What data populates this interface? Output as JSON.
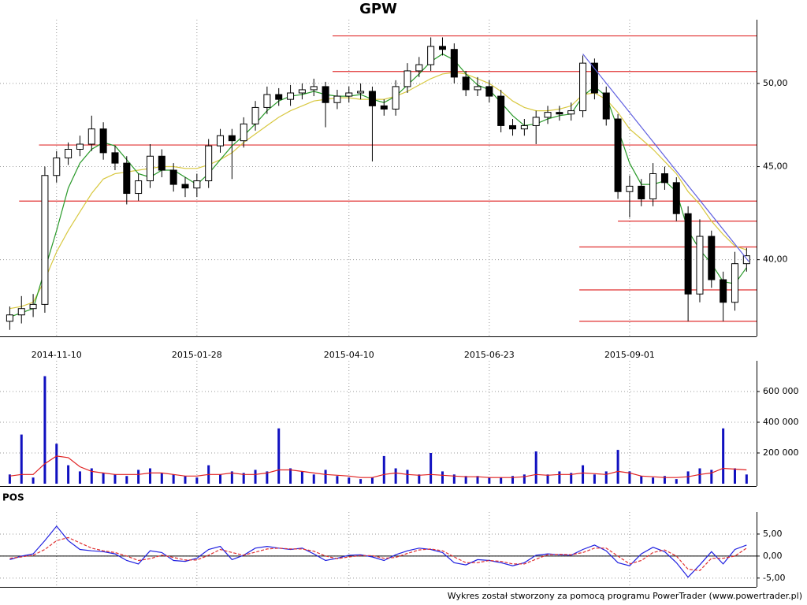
{
  "chart_data": [
    {
      "type": "candlestick",
      "title": "GPW",
      "log": true,
      "grid": true,
      "categories": [
        null,
        null,
        null,
        null,
        "2014-11-10",
        null,
        null,
        null,
        null,
        null,
        null,
        null,
        null,
        null,
        null,
        null,
        "2015-01-28",
        null,
        null,
        null,
        null,
        null,
        null,
        null,
        null,
        null,
        null,
        null,
        null,
        "2015-04-10",
        null,
        null,
        null,
        null,
        null,
        null,
        null,
        null,
        null,
        null,
        null,
        "2015-06-23",
        null,
        null,
        null,
        null,
        null,
        null,
        null,
        null,
        null,
        null,
        null,
        "2015-09-01",
        null,
        null,
        null,
        null,
        null,
        null,
        null,
        null,
        null,
        null
      ],
      "open": [
        37.0,
        37.3,
        37.6,
        37.8,
        44.5,
        45.5,
        46,
        46.3,
        47.2,
        45.8,
        45.2,
        43.5,
        44.2,
        45.6,
        44.8,
        44,
        43.8,
        44.2,
        46.2,
        46.8,
        46.5,
        47.5,
        48.5,
        49.3,
        49,
        49.4,
        49.6,
        49.8,
        48.8,
        49.2,
        49.4,
        49.5,
        48.6,
        48.4,
        49.8,
        50.8,
        51.2,
        52.4,
        52.2,
        50.4,
        49.6,
        49.8,
        49.2,
        47.4,
        47.2,
        47.4,
        47.9,
        48.2,
        48.1,
        48.3,
        51.3,
        49.4,
        47.8,
        43.6,
        43.9,
        43.2,
        44.6,
        44.1,
        42.4,
        38.3,
        41.2,
        39,
        37.9,
        39.8
      ],
      "high": [
        37.7,
        38.2,
        38.3,
        45.0,
        45.9,
        46.4,
        46.8,
        48.0,
        47.6,
        46.2,
        45.6,
        44.6,
        46.3,
        46.0,
        45.2,
        44.4,
        44.6,
        46.6,
        47.2,
        47.2,
        47.9,
        48.9,
        49.8,
        49.7,
        49.9,
        50.0,
        50.3,
        50.1,
        49.6,
        49.8,
        50.0,
        49.8,
        49.0,
        50.2,
        51.3,
        51.7,
        53.0,
        53.0,
        52.6,
        50.8,
        50.4,
        50.2,
        49.6,
        47.8,
        47.8,
        48.3,
        48.6,
        48.6,
        48.8,
        51.8,
        51.6,
        49.8,
        48.1,
        44.5,
        44.3,
        45.2,
        45.0,
        44.4,
        42.8,
        42.1,
        41.5,
        39.4,
        40.4,
        40.6
      ],
      "low": [
        36.6,
        36.9,
        37.2,
        37.4,
        44.1,
        45.1,
        45.6,
        45.9,
        45.4,
        44.8,
        42.9,
        43.1,
        43.8,
        44.4,
        43.6,
        43.3,
        43.3,
        43.8,
        45.8,
        44.3,
        46.1,
        47.1,
        48.1,
        48.6,
        48.6,
        49.0,
        49.2,
        47.3,
        48.4,
        48.8,
        49.0,
        45.3,
        48.0,
        48.0,
        49.4,
        50.4,
        50.8,
        51.8,
        50.0,
        49.2,
        49.2,
        48.8,
        47.0,
        46.8,
        46.8,
        46.3,
        47.5,
        47.7,
        47.7,
        47.9,
        49.0,
        47.4,
        43.2,
        42.2,
        42.8,
        42.8,
        43.7,
        42.0,
        37.0,
        37.9,
        38.6,
        37.0,
        37.5,
        39.4
      ],
      "close": [
        37.3,
        37.6,
        37.8,
        44.5,
        45.5,
        46,
        46.3,
        47.2,
        45.8,
        45.2,
        43.5,
        44.2,
        45.6,
        44.8,
        44,
        43.8,
        44.2,
        46.2,
        46.8,
        46.5,
        47.5,
        48.5,
        49.3,
        49,
        49.4,
        49.6,
        49.8,
        48.8,
        49.2,
        49.4,
        49.5,
        48.6,
        48.4,
        49.8,
        50.8,
        51.2,
        52.4,
        52.2,
        50.4,
        49.6,
        49.8,
        49.2,
        47.4,
        47.2,
        47.4,
        47.9,
        48.2,
        48.1,
        48.3,
        51.3,
        49.4,
        47.8,
        43.6,
        43.9,
        43.2,
        44.6,
        44.1,
        42.4,
        38.3,
        41.2,
        39,
        37.9,
        39.8,
        40.2
      ],
      "lines": [
        {
          "color": "#d8c840",
          "values": [
            37.6,
            37.7,
            37.9,
            39.0,
            40.4,
            41.5,
            42.5,
            43.5,
            44.3,
            44.6,
            44.7,
            44.8,
            44.9,
            45.0,
            45.0,
            44.9,
            44.9,
            45.1,
            45.4,
            45.8,
            46.4,
            46.9,
            47.4,
            47.9,
            48.3,
            48.6,
            48.9,
            49.0,
            49.1,
            49.1,
            49.0,
            49.0,
            49.0,
            49.2,
            49.5,
            49.9,
            50.3,
            50.6,
            50.7,
            50.6,
            50.3,
            50.0,
            49.5,
            48.9,
            48.5,
            48.3,
            48.3,
            48.4,
            48.6,
            49.3,
            49.4,
            49.0,
            48.2,
            47.2,
            46.6,
            46.0,
            45.3,
            44.6,
            43.6,
            42.9,
            42.0,
            41.3,
            40.7,
            40.5
          ]
        },
        {
          "color": "#2a9a2a",
          "values": [
            37.2,
            37.4,
            37.6,
            39.5,
            41.5,
            43.8,
            45.2,
            46.0,
            46.4,
            46.2,
            45.4,
            44.6,
            44.4,
            44.8,
            44.8,
            44.4,
            44.0,
            44.6,
            45.4,
            46.2,
            46.8,
            47.5,
            48.3,
            48.9,
            49.2,
            49.3,
            49.5,
            49.3,
            49.2,
            49.2,
            49.3,
            49.0,
            48.8,
            49.2,
            49.9,
            50.6,
            51.4,
            51.9,
            51.5,
            50.6,
            49.9,
            49.6,
            48.8,
            48.0,
            47.4,
            47.5,
            47.8,
            48.0,
            48.1,
            49.2,
            49.8,
            49.2,
            47.2,
            45.2,
            44.0,
            44.0,
            44.2,
            43.6,
            41.5,
            40.5,
            39.8,
            38.9,
            38.8,
            39.6
          ]
        }
      ],
      "hline_color": "#e03030",
      "hlines": [
        {
          "value": 53.1,
          "start": 27.6
        },
        {
          "value": 50.76,
          "start": 27.6
        },
        {
          "value": 46.25,
          "start": 2.5
        },
        {
          "value": 43.08,
          "start": 0.8
        },
        {
          "value": 42.0,
          "start": 52
        },
        {
          "value": 40.65,
          "start": 48.7
        },
        {
          "value": 38.5,
          "start": 48.7
        },
        {
          "value": 37.0,
          "start": 48.7
        }
      ],
      "trendline": {
        "color": "#6060e0",
        "x": [
          49,
          63.2
        ],
        "values": [
          51.9,
          39.9
        ]
      },
      "ylim": [
        36.3,
        54.2
      ],
      "yticks": [
        {
          "value": 40,
          "label": "40,00"
        },
        {
          "value": 45,
          "label": "45,00"
        },
        {
          "value": 50,
          "label": "50,00"
        }
      ]
    },
    {
      "type": "bar",
      "grid": true,
      "color": "#1010c0",
      "values": [
        60000,
        320000,
        40000,
        700000,
        260000,
        120000,
        80000,
        100000,
        70000,
        60000,
        50000,
        90000,
        100000,
        70000,
        60000,
        50000,
        40000,
        120000,
        60000,
        80000,
        70000,
        90000,
        80000,
        360000,
        100000,
        80000,
        60000,
        90000,
        50000,
        40000,
        30000,
        40000,
        180000,
        100000,
        90000,
        60000,
        200000,
        80000,
        60000,
        50000,
        50000,
        40000,
        40000,
        50000,
        60000,
        210000,
        60000,
        80000,
        70000,
        120000,
        60000,
        80000,
        220000,
        80000,
        50000,
        40000,
        50000,
        30000,
        80000,
        100000,
        90000,
        360000,
        100000,
        60000
      ],
      "lines": [
        {
          "color": "#e02020",
          "values": [
            50000,
            60000,
            60000,
            130000,
            180000,
            170000,
            110000,
            80000,
            70000,
            60000,
            60000,
            60000,
            70000,
            70000,
            60000,
            50000,
            50000,
            60000,
            60000,
            70000,
            60000,
            60000,
            70000,
            90000,
            90000,
            80000,
            70000,
            60000,
            55000,
            50000,
            40000,
            40000,
            60000,
            70000,
            60000,
            55000,
            60000,
            55000,
            50000,
            45000,
            45000,
            40000,
            40000,
            40000,
            45000,
            60000,
            55000,
            60000,
            60000,
            70000,
            65000,
            60000,
            80000,
            70000,
            50000,
            45000,
            40000,
            40000,
            45000,
            60000,
            70000,
            100000,
            95000,
            90000
          ]
        }
      ],
      "ylim": [
        0,
        800000
      ],
      "yticks": [
        {
          "value": 200000,
          "label": "200 000"
        },
        {
          "value": 400000,
          "label": "400 000"
        },
        {
          "value": 600000,
          "label": "600 000"
        }
      ]
    },
    {
      "type": "line",
      "title": "POS",
      "grid": true,
      "zero_line": true,
      "lines": [
        {
          "color": "#2020e0",
          "values": [
            -0.8,
            0,
            0.5,
            3.5,
            6.8,
            3.5,
            1.5,
            1.2,
            1,
            0.5,
            -1,
            -1.8,
            1.2,
            0.8,
            -1,
            -1.2,
            -0.5,
            1.5,
            2.2,
            -0.8,
            0.2,
            1.8,
            2.2,
            1.8,
            1.5,
            1.8,
            0.5,
            -1,
            -0.5,
            0.2,
            0.3,
            -0.2,
            -1,
            0.3,
            1.2,
            1.8,
            1.5,
            0.8,
            -1.5,
            -2,
            -0.8,
            -1,
            -1.5,
            -2.2,
            -1.5,
            0.2,
            0.5,
            0.3,
            0.2,
            1.5,
            2.5,
            1.2,
            -1.5,
            -2.2,
            0.5,
            2,
            1,
            -1.5,
            -4.8,
            -2,
            1,
            -1.8,
            1.5,
            2.5
          ]
        },
        {
          "color": "#e03030",
          "dashed": true,
          "values": [
            -0.5,
            -0.2,
            0.2,
            1.5,
            3.5,
            4.2,
            3,
            1.8,
            1.2,
            0.8,
            0,
            -1,
            -0.6,
            0.2,
            -0.3,
            -0.9,
            -0.9,
            0.2,
            1.5,
            0.8,
            0.2,
            0.9,
            1.6,
            1.8,
            1.6,
            1.6,
            1.1,
            0,
            -0.6,
            -0.2,
            0.1,
            0.1,
            -0.5,
            -0.3,
            0.6,
            1.4,
            1.6,
            1.2,
            -0.2,
            -1.5,
            -1.5,
            -1,
            -1.2,
            -1.8,
            -1.8,
            -0.7,
            0.3,
            0.4,
            0.3,
            0.8,
            1.8,
            1.8,
            0,
            -1.8,
            -1,
            0.8,
            1.4,
            0,
            -3,
            -3.3,
            -0.5,
            -0.5,
            0,
            1.8
          ]
        }
      ],
      "ylim": [
        -7,
        10
      ],
      "yticks": [
        {
          "value": -5,
          "label": "-5,00"
        },
        {
          "value": 0,
          "label": "0,00"
        },
        {
          "value": 5,
          "label": "5,00"
        }
      ]
    }
  ],
  "footer": "Wykres został stworzony za pomocą programu PowerTrader (www.powertrader.pl)"
}
